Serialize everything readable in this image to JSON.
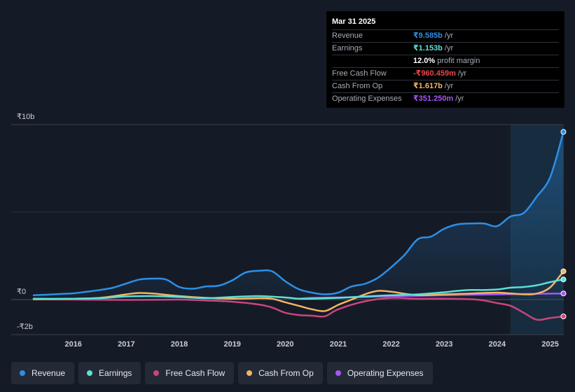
{
  "tooltip": {
    "date": "Mar 31 2025",
    "rows": [
      {
        "label": "Revenue",
        "value": "₹9.585b",
        "unit": "/yr",
        "color": "#2d8fe6"
      },
      {
        "label": "Earnings",
        "value": "₹1.153b",
        "unit": "/yr",
        "color": "#5ce0d5"
      },
      {
        "label": "",
        "value": "12.0%",
        "unit": "profit margin",
        "color": "#ffffff"
      },
      {
        "label": "Free Cash Flow",
        "value": "-₹960.459m",
        "unit": "/yr",
        "color": "#e8474c"
      },
      {
        "label": "Cash From Op",
        "value": "₹1.617b",
        "unit": "/yr",
        "color": "#f2b463"
      },
      {
        "label": "Operating Expenses",
        "value": "₹351.250m",
        "unit": "/yr",
        "color": "#a855f7"
      }
    ]
  },
  "legend": [
    {
      "label": "Revenue",
      "color": "#2d8fe6"
    },
    {
      "label": "Earnings",
      "color": "#5ce0d5"
    },
    {
      "label": "Free Cash Flow",
      "color": "#c9457f"
    },
    {
      "label": "Cash From Op",
      "color": "#f2b463"
    },
    {
      "label": "Operating Expenses",
      "color": "#a855f7"
    }
  ],
  "chart_data": {
    "type": "line",
    "title": "",
    "unit": "₹b",
    "y_tick_labels": [
      {
        "value": 10,
        "label": "₹10b"
      },
      {
        "value": 0,
        "label": "₹0"
      },
      {
        "value": -2,
        "label": "-₹2b"
      }
    ],
    "ylim": [
      -2,
      10
    ],
    "xlim": [
      2015.25,
      2025.25
    ],
    "x_ticks": [
      2016,
      2017,
      2018,
      2019,
      2020,
      2021,
      2022,
      2023,
      2024,
      2025
    ],
    "x_tick_labels": [
      "2016",
      "2017",
      "2018",
      "2019",
      "2020",
      "2021",
      "2022",
      "2023",
      "2024",
      "2025"
    ],
    "highlight_range": [
      2024.25,
      2025.25
    ],
    "series": [
      {
        "name": "Revenue",
        "color": "#2d8fe6",
        "fill": true,
        "x": [
          2015.25,
          2015.5,
          2015.75,
          2016.0,
          2016.25,
          2016.5,
          2016.75,
          2017.0,
          2017.25,
          2017.5,
          2017.75,
          2018.0,
          2018.25,
          2018.5,
          2018.75,
          2019.0,
          2019.25,
          2019.5,
          2019.75,
          2020.0,
          2020.25,
          2020.5,
          2020.75,
          2021.0,
          2021.25,
          2021.5,
          2021.75,
          2022.0,
          2022.25,
          2022.5,
          2022.75,
          2023.0,
          2023.25,
          2023.5,
          2023.75,
          2024.0,
          2024.25,
          2024.5,
          2024.75,
          2025.0,
          2025.25
        ],
        "y": [
          0.25,
          0.28,
          0.32,
          0.36,
          0.45,
          0.55,
          0.68,
          0.92,
          1.15,
          1.2,
          1.15,
          0.72,
          0.62,
          0.75,
          0.8,
          1.1,
          1.55,
          1.65,
          1.62,
          1.05,
          0.6,
          0.4,
          0.3,
          0.4,
          0.75,
          0.9,
          1.25,
          1.85,
          2.55,
          3.45,
          3.6,
          4.05,
          4.3,
          4.35,
          4.35,
          4.2,
          4.75,
          4.95,
          5.9,
          7.0,
          9.585
        ]
      },
      {
        "name": "Earnings",
        "color": "#5ce0d5",
        "x": [
          2015.25,
          2016.0,
          2016.5,
          2017.0,
          2017.5,
          2018.0,
          2018.5,
          2019.0,
          2019.5,
          2020.0,
          2020.25,
          2020.5,
          2021.0,
          2021.5,
          2022.0,
          2022.5,
          2023.0,
          2023.25,
          2023.5,
          2023.75,
          2024.0,
          2024.25,
          2024.5,
          2024.75,
          2025.0,
          2025.25
        ],
        "y": [
          0.05,
          0.05,
          0.08,
          0.18,
          0.2,
          0.15,
          0.08,
          0.15,
          0.2,
          0.12,
          0.05,
          0.05,
          0.1,
          0.18,
          0.25,
          0.3,
          0.42,
          0.5,
          0.55,
          0.55,
          0.58,
          0.68,
          0.72,
          0.82,
          1.0,
          1.153
        ]
      },
      {
        "name": "Free Cash Flow",
        "color": "#c9457f",
        "x": [
          2015.25,
          2016.0,
          2017.0,
          2018.0,
          2018.5,
          2019.0,
          2019.5,
          2019.75,
          2020.0,
          2020.25,
          2020.5,
          2020.75,
          2021.0,
          2021.5,
          2022.0,
          2022.5,
          2023.0,
          2023.5,
          2023.75,
          2024.0,
          2024.25,
          2024.5,
          2024.75,
          2025.0,
          2025.25
        ],
        "y": [
          0.02,
          0.0,
          -0.02,
          0.0,
          -0.05,
          -0.12,
          -0.28,
          -0.45,
          -0.75,
          -0.88,
          -0.92,
          -0.95,
          -0.55,
          -0.1,
          0.1,
          0.05,
          0.05,
          0.02,
          -0.05,
          -0.2,
          -0.35,
          -0.75,
          -1.15,
          -1.05,
          -0.96
        ]
      },
      {
        "name": "Cash From Op",
        "color": "#f2b463",
        "x": [
          2015.25,
          2016.0,
          2016.5,
          2017.0,
          2017.25,
          2017.5,
          2018.0,
          2018.5,
          2019.0,
          2019.5,
          2019.75,
          2020.0,
          2020.25,
          2020.5,
          2020.75,
          2021.0,
          2021.25,
          2021.5,
          2021.75,
          2022.0,
          2022.5,
          2023.0,
          2023.5,
          2024.0,
          2024.5,
          2024.75,
          2025.0,
          2025.25
        ],
        "y": [
          0.02,
          0.05,
          0.1,
          0.3,
          0.38,
          0.35,
          0.2,
          0.1,
          0.05,
          0.08,
          0.05,
          -0.15,
          -0.35,
          -0.55,
          -0.65,
          -0.3,
          0.0,
          0.3,
          0.5,
          0.45,
          0.25,
          0.3,
          0.35,
          0.4,
          0.3,
          0.35,
          0.7,
          1.617
        ]
      },
      {
        "name": "Operating Expenses",
        "color": "#a855f7",
        "x": [
          2020.25,
          2020.5,
          2021.0,
          2021.5,
          2022.0,
          2022.5,
          2023.0,
          2023.5,
          2024.0,
          2024.5,
          2025.0,
          2025.25
        ],
        "y": [
          0.05,
          0.1,
          0.12,
          0.15,
          0.2,
          0.22,
          0.25,
          0.28,
          0.3,
          0.32,
          0.34,
          0.351
        ]
      }
    ]
  }
}
